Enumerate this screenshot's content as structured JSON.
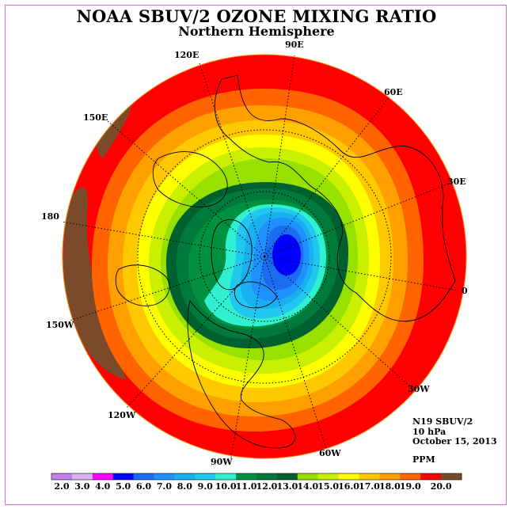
{
  "title": "NOAA SBUV/2 OZONE MIXING RATIO",
  "subtitle": "Northern Hemisphere",
  "info": {
    "instrument": "N19 SBUV/2",
    "pressure_level": "10 hPa",
    "date": "October 15, 2013",
    "units": "PPM"
  },
  "longitude_labels": [
    "90E",
    "60E",
    "30E",
    "0",
    "30W",
    "60W",
    "90W",
    "120W",
    "150W",
    "180",
    "150E",
    "120E"
  ],
  "colorbar": {
    "ticks": [
      "2.0",
      "3.0",
      "4.0",
      "5.0",
      "6.0",
      "7.0",
      "8.0",
      "9.0",
      "10.0",
      "11.0",
      "12.0",
      "13.0",
      "14.0",
      "15.0",
      "16.0",
      "17.0",
      "18.0",
      "19.0",
      "20.0"
    ],
    "colors": [
      "#c080f0",
      "#d8b4f6",
      "#ff00ff",
      "#0000ff",
      "#1a6cf0",
      "#1e90ff",
      "#18b0f0",
      "#20c8f0",
      "#30f0d0",
      "#009040",
      "#007a3a",
      "#006030",
      "#98e000",
      "#c8f000",
      "#ffff00",
      "#ffc800",
      "#ffa000",
      "#ff6400",
      "#ff0000",
      "#7a4a2a"
    ]
  },
  "contour_colors": {
    "outer": "#ff0000",
    "band_18": "#ff6400",
    "band_17": "#ffa000",
    "band_16": "#ffc800",
    "band_15": "#ffff00",
    "band_14": "#c8f000",
    "band_13": "#98e000",
    "band_12": "#006030",
    "band_11": "#007a3a",
    "band_10": "#009040",
    "band_9": "#30f0d0",
    "band_8": "#20c8f0",
    "band_7": "#18b0f0",
    "band_6": "#1e90ff",
    "band_5": "#1a6cf0",
    "core": "#0000ff",
    "patch": "#7a4a2a"
  }
}
